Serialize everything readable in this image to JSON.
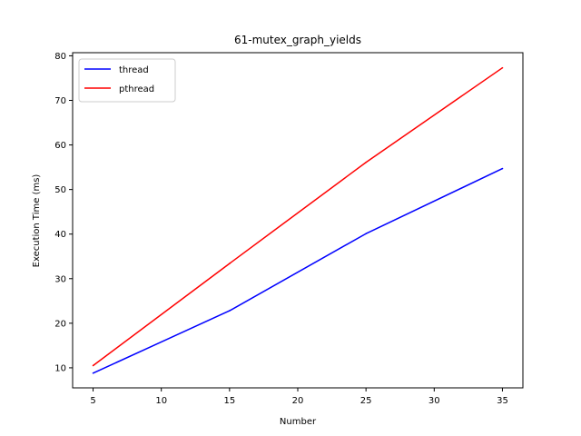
{
  "chart_data": {
    "type": "line",
    "title": "61-mutex_graph_yields",
    "xlabel": "Number",
    "ylabel": "Execution Time (ms)",
    "xlim": [
      3.5,
      36.5
    ],
    "ylim": [
      5.5,
      80.7
    ],
    "xticks": [
      5,
      10,
      15,
      20,
      25,
      30,
      35
    ],
    "yticks": [
      10,
      20,
      30,
      40,
      50,
      60,
      70,
      80
    ],
    "grid": false,
    "legend_position": "upper-left",
    "series": [
      {
        "name": "thread",
        "color": "#0000ff",
        "x": [
          5,
          15,
          25,
          35
        ],
        "y": [
          8.8,
          22.8,
          40.1,
          54.7
        ]
      },
      {
        "name": "pthread",
        "color": "#ff0000",
        "x": [
          5,
          15,
          25,
          35
        ],
        "y": [
          10.5,
          33.4,
          56.1,
          77.3
        ]
      }
    ]
  }
}
